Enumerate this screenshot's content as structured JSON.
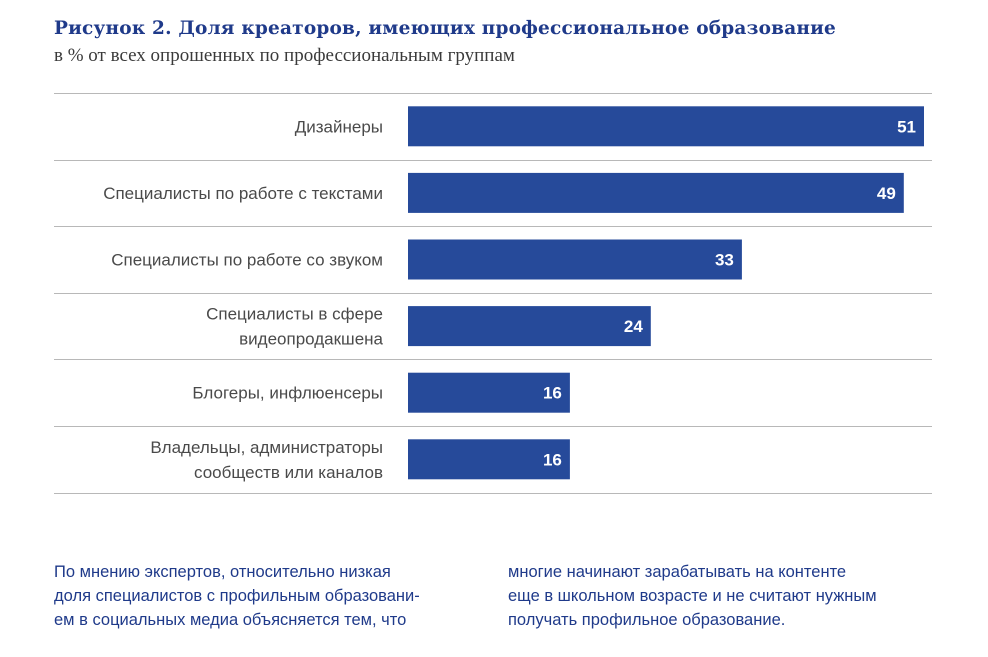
{
  "figure": {
    "title": "Рисунок 2.  Доля креаторов, имеющих профессиональное образование",
    "subtitle": "в % от всех опрошенных по профессиональным группам"
  },
  "chart_data": {
    "type": "bar",
    "orientation": "horizontal",
    "categories": [
      [
        "Дизайнеры"
      ],
      [
        "Специалисты по работе с текстами"
      ],
      [
        "Специалисты по работе со звуком"
      ],
      [
        "Специалисты в сфере",
        "видеопродакшена"
      ],
      [
        "Блогеры, инфлюенсеры"
      ],
      [
        "Владельцы, администраторы",
        "сообществ или каналов"
      ]
    ],
    "values": [
      51,
      49,
      33,
      24,
      16,
      16
    ],
    "xlim": [
      0,
      51
    ],
    "grid": false,
    "data_labels": true,
    "bar_color": "#264a9a",
    "divider_color": "#b8b8b8"
  },
  "body_text": {
    "left_lines": [
      "По мнению экспертов, относительно низкая",
      "доля специалистов с профильным образовани-",
      "ем в социальных медиа объясняется тем, что"
    ],
    "right_lines": [
      "многие начинают зарабатывать на контенте",
      "еще в школьном возрасте и не считают нужным",
      "получать профильное образование."
    ]
  },
  "colors": {
    "title": "#1f3a8a",
    "subtitle": "#3a3a3a",
    "label": "#4a4a4a",
    "bar": "#264a9a",
    "body": "#1f3a8a"
  }
}
